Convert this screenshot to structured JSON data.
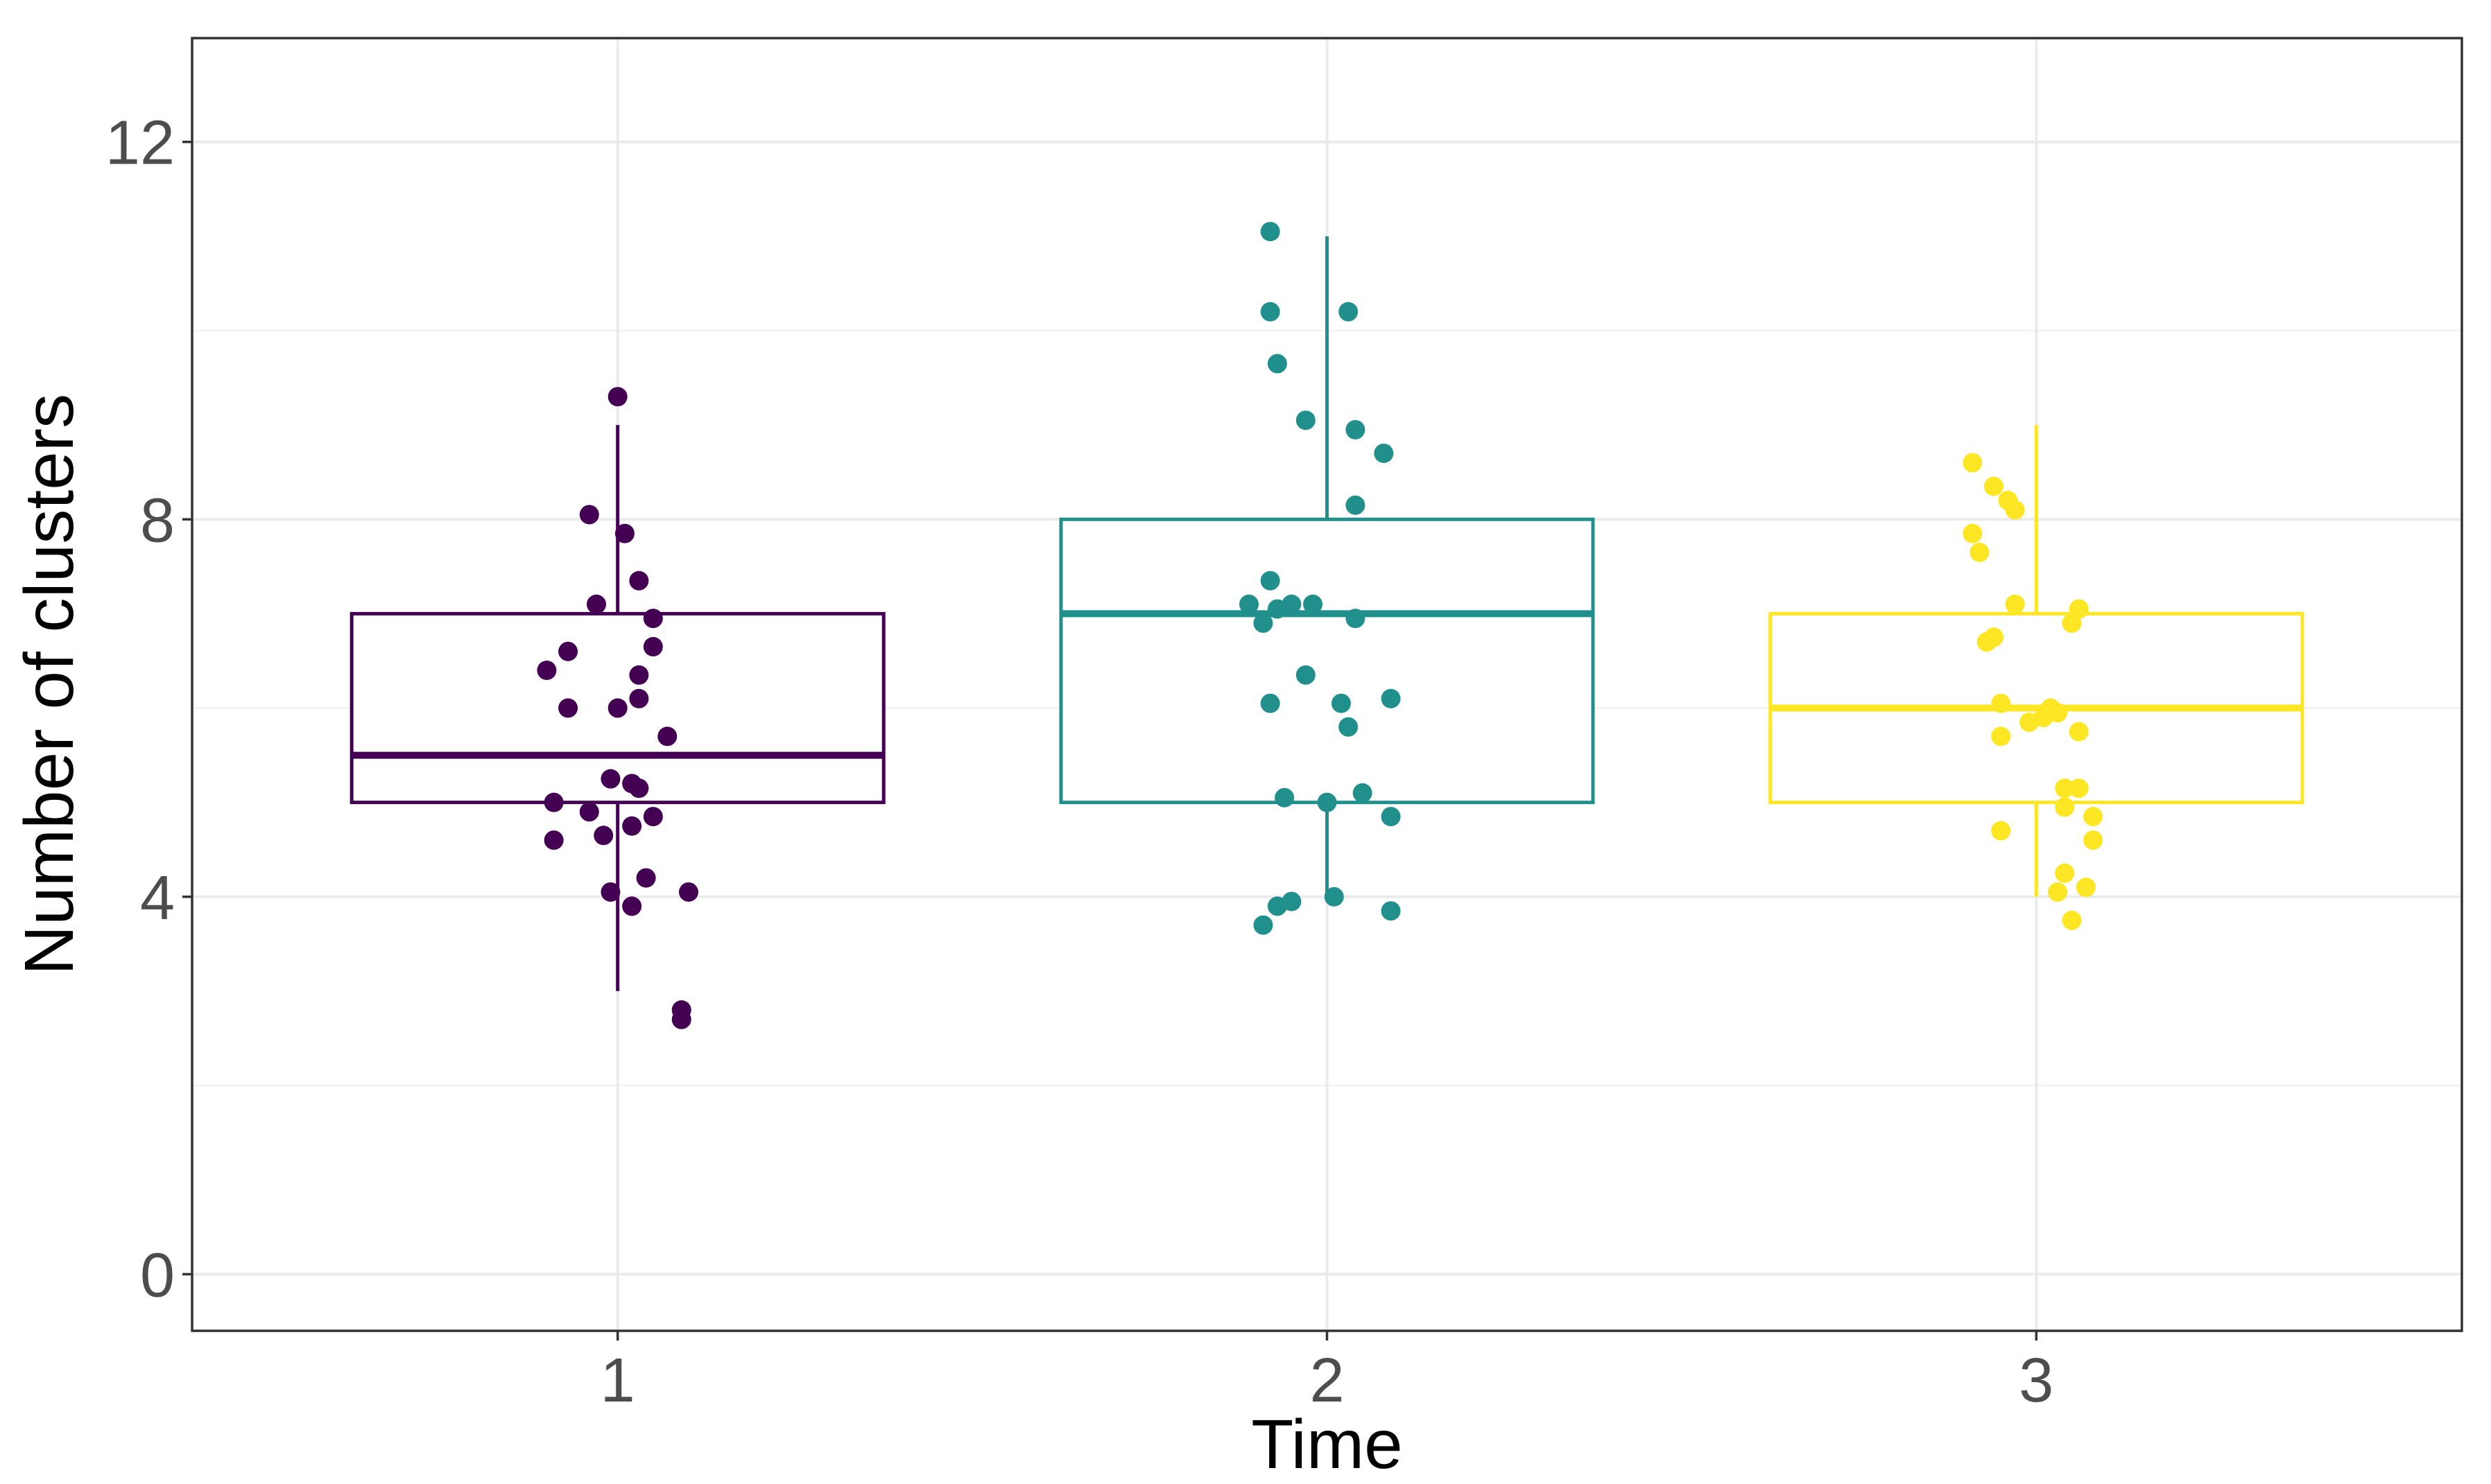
{
  "chart_data": {
    "type": "boxplot",
    "title": "",
    "xlabel": "Time",
    "ylabel": "Number of clusters",
    "categories": [
      "1",
      "2",
      "3"
    ],
    "ylim": [
      -0.6,
      13.1
    ],
    "y_ticks": [
      0,
      4,
      8,
      12
    ],
    "y_tick_labels": [
      "0",
      "4",
      "8",
      "12"
    ],
    "grid": true,
    "legend": "none",
    "series": [
      {
        "name": "1",
        "color": "#440154",
        "box": {
          "min": 3,
          "q1": 5,
          "median": 5.5,
          "q3": 7,
          "max": 9
        },
        "points": [
          {
            "x": 1.0,
            "y": 9.3
          },
          {
            "x": 0.96,
            "y": 8.05
          },
          {
            "x": 1.01,
            "y": 7.85
          },
          {
            "x": 1.03,
            "y": 7.35
          },
          {
            "x": 0.97,
            "y": 7.1
          },
          {
            "x": 1.05,
            "y": 6.95
          },
          {
            "x": 1.05,
            "y": 6.65
          },
          {
            "x": 0.93,
            "y": 6.6
          },
          {
            "x": 0.9,
            "y": 6.4
          },
          {
            "x": 1.03,
            "y": 6.35
          },
          {
            "x": 1.03,
            "y": 6.1
          },
          {
            "x": 0.93,
            "y": 6.0
          },
          {
            "x": 1.0,
            "y": 6.0
          },
          {
            "x": 1.07,
            "y": 5.7
          },
          {
            "x": 0.99,
            "y": 5.25
          },
          {
            "x": 1.02,
            "y": 5.2
          },
          {
            "x": 1.03,
            "y": 5.15
          },
          {
            "x": 0.91,
            "y": 5.0
          },
          {
            "x": 0.96,
            "y": 4.9
          },
          {
            "x": 1.05,
            "y": 4.85
          },
          {
            "x": 1.02,
            "y": 4.75
          },
          {
            "x": 0.98,
            "y": 4.65
          },
          {
            "x": 0.91,
            "y": 4.6
          },
          {
            "x": 1.04,
            "y": 4.2
          },
          {
            "x": 0.99,
            "y": 4.05
          },
          {
            "x": 1.1,
            "y": 4.05
          },
          {
            "x": 1.02,
            "y": 3.9
          },
          {
            "x": 1.09,
            "y": 2.8
          },
          {
            "x": 1.09,
            "y": 2.7
          }
        ]
      },
      {
        "name": "2",
        "color": "#21908C",
        "box": {
          "min": 4,
          "q1": 5,
          "median": 7,
          "q3": 8,
          "max": 11
        },
        "points": [
          {
            "x": 1.92,
            "y": 11.05
          },
          {
            "x": 1.92,
            "y": 10.2
          },
          {
            "x": 2.03,
            "y": 10.2
          },
          {
            "x": 1.93,
            "y": 9.65
          },
          {
            "x": 1.97,
            "y": 9.05
          },
          {
            "x": 2.04,
            "y": 8.95
          },
          {
            "x": 2.08,
            "y": 8.7
          },
          {
            "x": 2.04,
            "y": 8.15
          },
          {
            "x": 1.92,
            "y": 7.35
          },
          {
            "x": 1.89,
            "y": 7.1
          },
          {
            "x": 1.93,
            "y": 7.05
          },
          {
            "x": 1.95,
            "y": 7.1
          },
          {
            "x": 1.98,
            "y": 7.1
          },
          {
            "x": 1.91,
            "y": 6.9
          },
          {
            "x": 2.04,
            "y": 6.95
          },
          {
            "x": 1.97,
            "y": 6.35
          },
          {
            "x": 1.92,
            "y": 6.05
          },
          {
            "x": 2.02,
            "y": 6.05
          },
          {
            "x": 2.09,
            "y": 6.1
          },
          {
            "x": 2.03,
            "y": 5.8
          },
          {
            "x": 1.94,
            "y": 5.05
          },
          {
            "x": 2.0,
            "y": 5.0
          },
          {
            "x": 2.05,
            "y": 5.1
          },
          {
            "x": 2.09,
            "y": 4.85
          },
          {
            "x": 1.93,
            "y": 3.9
          },
          {
            "x": 1.95,
            "y": 3.95
          },
          {
            "x": 2.01,
            "y": 4.0
          },
          {
            "x": 2.09,
            "y": 3.85
          },
          {
            "x": 1.91,
            "y": 3.7
          }
        ]
      },
      {
        "name": "3",
        "color": "#FDE725",
        "box": {
          "min": 4,
          "q1": 5,
          "median": 6,
          "q3": 7,
          "max": 9
        },
        "points": [
          {
            "x": 2.91,
            "y": 8.6
          },
          {
            "x": 2.94,
            "y": 8.35
          },
          {
            "x": 2.96,
            "y": 8.2
          },
          {
            "x": 2.97,
            "y": 8.1
          },
          {
            "x": 2.91,
            "y": 7.85
          },
          {
            "x": 2.92,
            "y": 7.65
          },
          {
            "x": 2.97,
            "y": 7.1
          },
          {
            "x": 3.06,
            "y": 7.05
          },
          {
            "x": 3.05,
            "y": 6.9
          },
          {
            "x": 2.94,
            "y": 6.75
          },
          {
            "x": 2.93,
            "y": 6.7
          },
          {
            "x": 2.95,
            "y": 6.05
          },
          {
            "x": 3.02,
            "y": 6.0
          },
          {
            "x": 3.03,
            "y": 5.95
          },
          {
            "x": 2.99,
            "y": 5.85
          },
          {
            "x": 3.01,
            "y": 5.9
          },
          {
            "x": 2.95,
            "y": 5.7
          },
          {
            "x": 3.06,
            "y": 5.75
          },
          {
            "x": 3.04,
            "y": 5.15
          },
          {
            "x": 3.06,
            "y": 5.15
          },
          {
            "x": 3.04,
            "y": 4.95
          },
          {
            "x": 3.08,
            "y": 4.85
          },
          {
            "x": 2.95,
            "y": 4.7
          },
          {
            "x": 3.08,
            "y": 4.6
          },
          {
            "x": 3.04,
            "y": 4.25
          },
          {
            "x": 3.07,
            "y": 4.1
          },
          {
            "x": 3.03,
            "y": 4.05
          },
          {
            "x": 3.05,
            "y": 3.75
          }
        ]
      }
    ]
  }
}
